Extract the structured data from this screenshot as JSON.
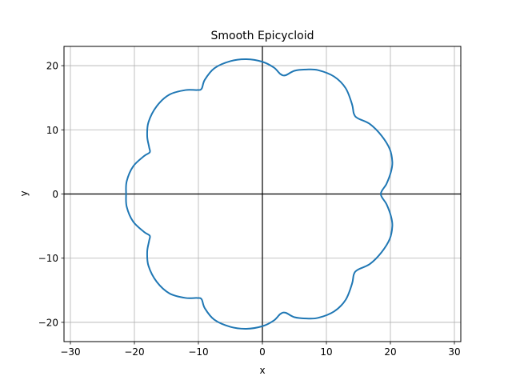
{
  "chart_data": {
    "type": "line",
    "title": "Smooth Epicycloid",
    "xlabel": "x",
    "ylabel": "y",
    "xlim": [
      -31,
      31
    ],
    "ylim": [
      -23,
      23
    ],
    "x_ticks": [
      -30,
      -20,
      -10,
      0,
      10,
      20,
      30
    ],
    "y_ticks": [
      -20,
      -10,
      0,
      10,
      20
    ],
    "x_tick_labels": [
      "−30",
      "−20",
      "−10",
      "0",
      "10",
      "20",
      "30"
    ],
    "y_tick_labels": [
      "−20",
      "−10",
      "0",
      "10",
      "20"
    ],
    "grid": true,
    "reference_lines": [
      "x=0",
      "y=0"
    ],
    "series": [
      {
        "color": "#1f77b4",
        "points": [
          [
            18.5,
            0.0
          ],
          [
            19.4,
            1.6
          ],
          [
            20.1,
            3.5
          ],
          [
            20.3,
            5.0
          ],
          [
            19.9,
            7.0
          ],
          [
            18.6,
            9.1
          ],
          [
            16.8,
            10.9
          ],
          [
            14.9,
            11.8
          ],
          [
            14.3,
            12.5
          ],
          [
            14.0,
            14.0
          ],
          [
            13.0,
            16.5
          ],
          [
            11.2,
            18.3
          ],
          [
            8.7,
            19.3
          ],
          [
            6.9,
            19.4
          ],
          [
            5.0,
            19.2
          ],
          [
            3.6,
            18.5
          ],
          [
            2.8,
            18.7
          ],
          [
            1.8,
            19.7
          ],
          [
            0.0,
            20.6
          ],
          [
            -2.5,
            21.0
          ],
          [
            -5.0,
            20.7
          ],
          [
            -7.5,
            19.6
          ],
          [
            -9.0,
            17.8
          ],
          [
            -9.5,
            16.4
          ],
          [
            -10.2,
            16.2
          ],
          [
            -12.0,
            16.2
          ],
          [
            -14.5,
            15.5
          ],
          [
            -16.5,
            13.7
          ],
          [
            -17.8,
            11.2
          ],
          [
            -18.0,
            9.0
          ],
          [
            -17.7,
            7.3
          ],
          [
            -17.6,
            6.5
          ],
          [
            -18.5,
            5.9
          ],
          [
            -20.2,
            4.3
          ],
          [
            -21.2,
            2.0
          ],
          [
            -21.3,
            0.0
          ],
          [
            -21.2,
            -2.0
          ],
          [
            -20.2,
            -4.3
          ],
          [
            -18.5,
            -5.9
          ],
          [
            -17.6,
            -6.5
          ],
          [
            -17.7,
            -7.3
          ],
          [
            -18.0,
            -9.0
          ],
          [
            -17.8,
            -11.2
          ],
          [
            -16.5,
            -13.7
          ],
          [
            -14.5,
            -15.5
          ],
          [
            -12.0,
            -16.2
          ],
          [
            -10.2,
            -16.2
          ],
          [
            -9.5,
            -16.4
          ],
          [
            -9.0,
            -17.8
          ],
          [
            -7.5,
            -19.6
          ],
          [
            -5.0,
            -20.7
          ],
          [
            -2.5,
            -21.0
          ],
          [
            0.0,
            -20.6
          ],
          [
            1.8,
            -19.7
          ],
          [
            2.8,
            -18.7
          ],
          [
            3.6,
            -18.5
          ],
          [
            5.0,
            -19.2
          ],
          [
            6.9,
            -19.4
          ],
          [
            8.7,
            -19.3
          ],
          [
            11.2,
            -18.3
          ],
          [
            13.0,
            -16.5
          ],
          [
            14.0,
            -14.0
          ],
          [
            14.3,
            -12.5
          ],
          [
            14.9,
            -11.8
          ],
          [
            16.8,
            -10.9
          ],
          [
            18.6,
            -9.1
          ],
          [
            19.9,
            -7.0
          ],
          [
            20.3,
            -5.0
          ],
          [
            20.1,
            -3.5
          ],
          [
            19.4,
            -1.6
          ],
          [
            18.5,
            0.0
          ]
        ]
      }
    ]
  }
}
